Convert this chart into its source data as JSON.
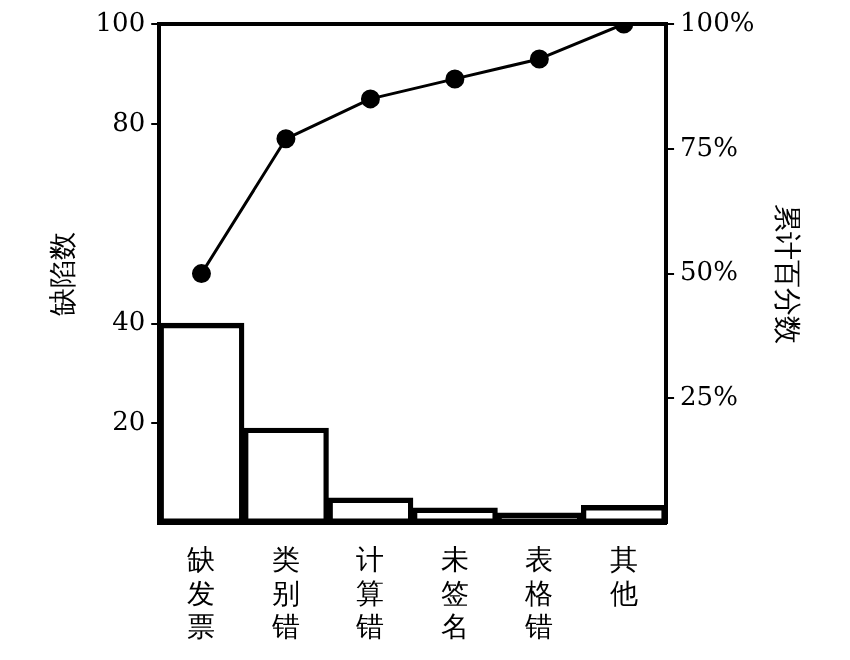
{
  "chart_data": {
    "type": "bar",
    "ylabel": "缺陷数",
    "y2label": "累计百分数",
    "categories": [
      "缺发票",
      "类别错",
      "计算错",
      "未签名",
      "表格错",
      "其他"
    ],
    "series": [
      {
        "color": "#000000",
        "values": [
          40,
          19,
          5,
          3,
          2,
          3.5
        ]
      },
      {
        "type": "line",
        "axis": "y2",
        "color": "#000000",
        "marker": "circle",
        "values": [
          50,
          77,
          85,
          89,
          93,
          100
        ]
      }
    ],
    "ylim": [
      0,
      100
    ],
    "yticks": [
      20,
      40,
      80,
      100
    ],
    "y2lim": [
      0,
      100
    ],
    "y2ticks": [
      {
        "value": 25,
        "label": "25%"
      },
      {
        "value": 50,
        "label": "50%"
      },
      {
        "value": 75,
        "label": "75%"
      },
      {
        "value": 100,
        "label": "100%"
      }
    ],
    "grid": false,
    "legend": false
  }
}
